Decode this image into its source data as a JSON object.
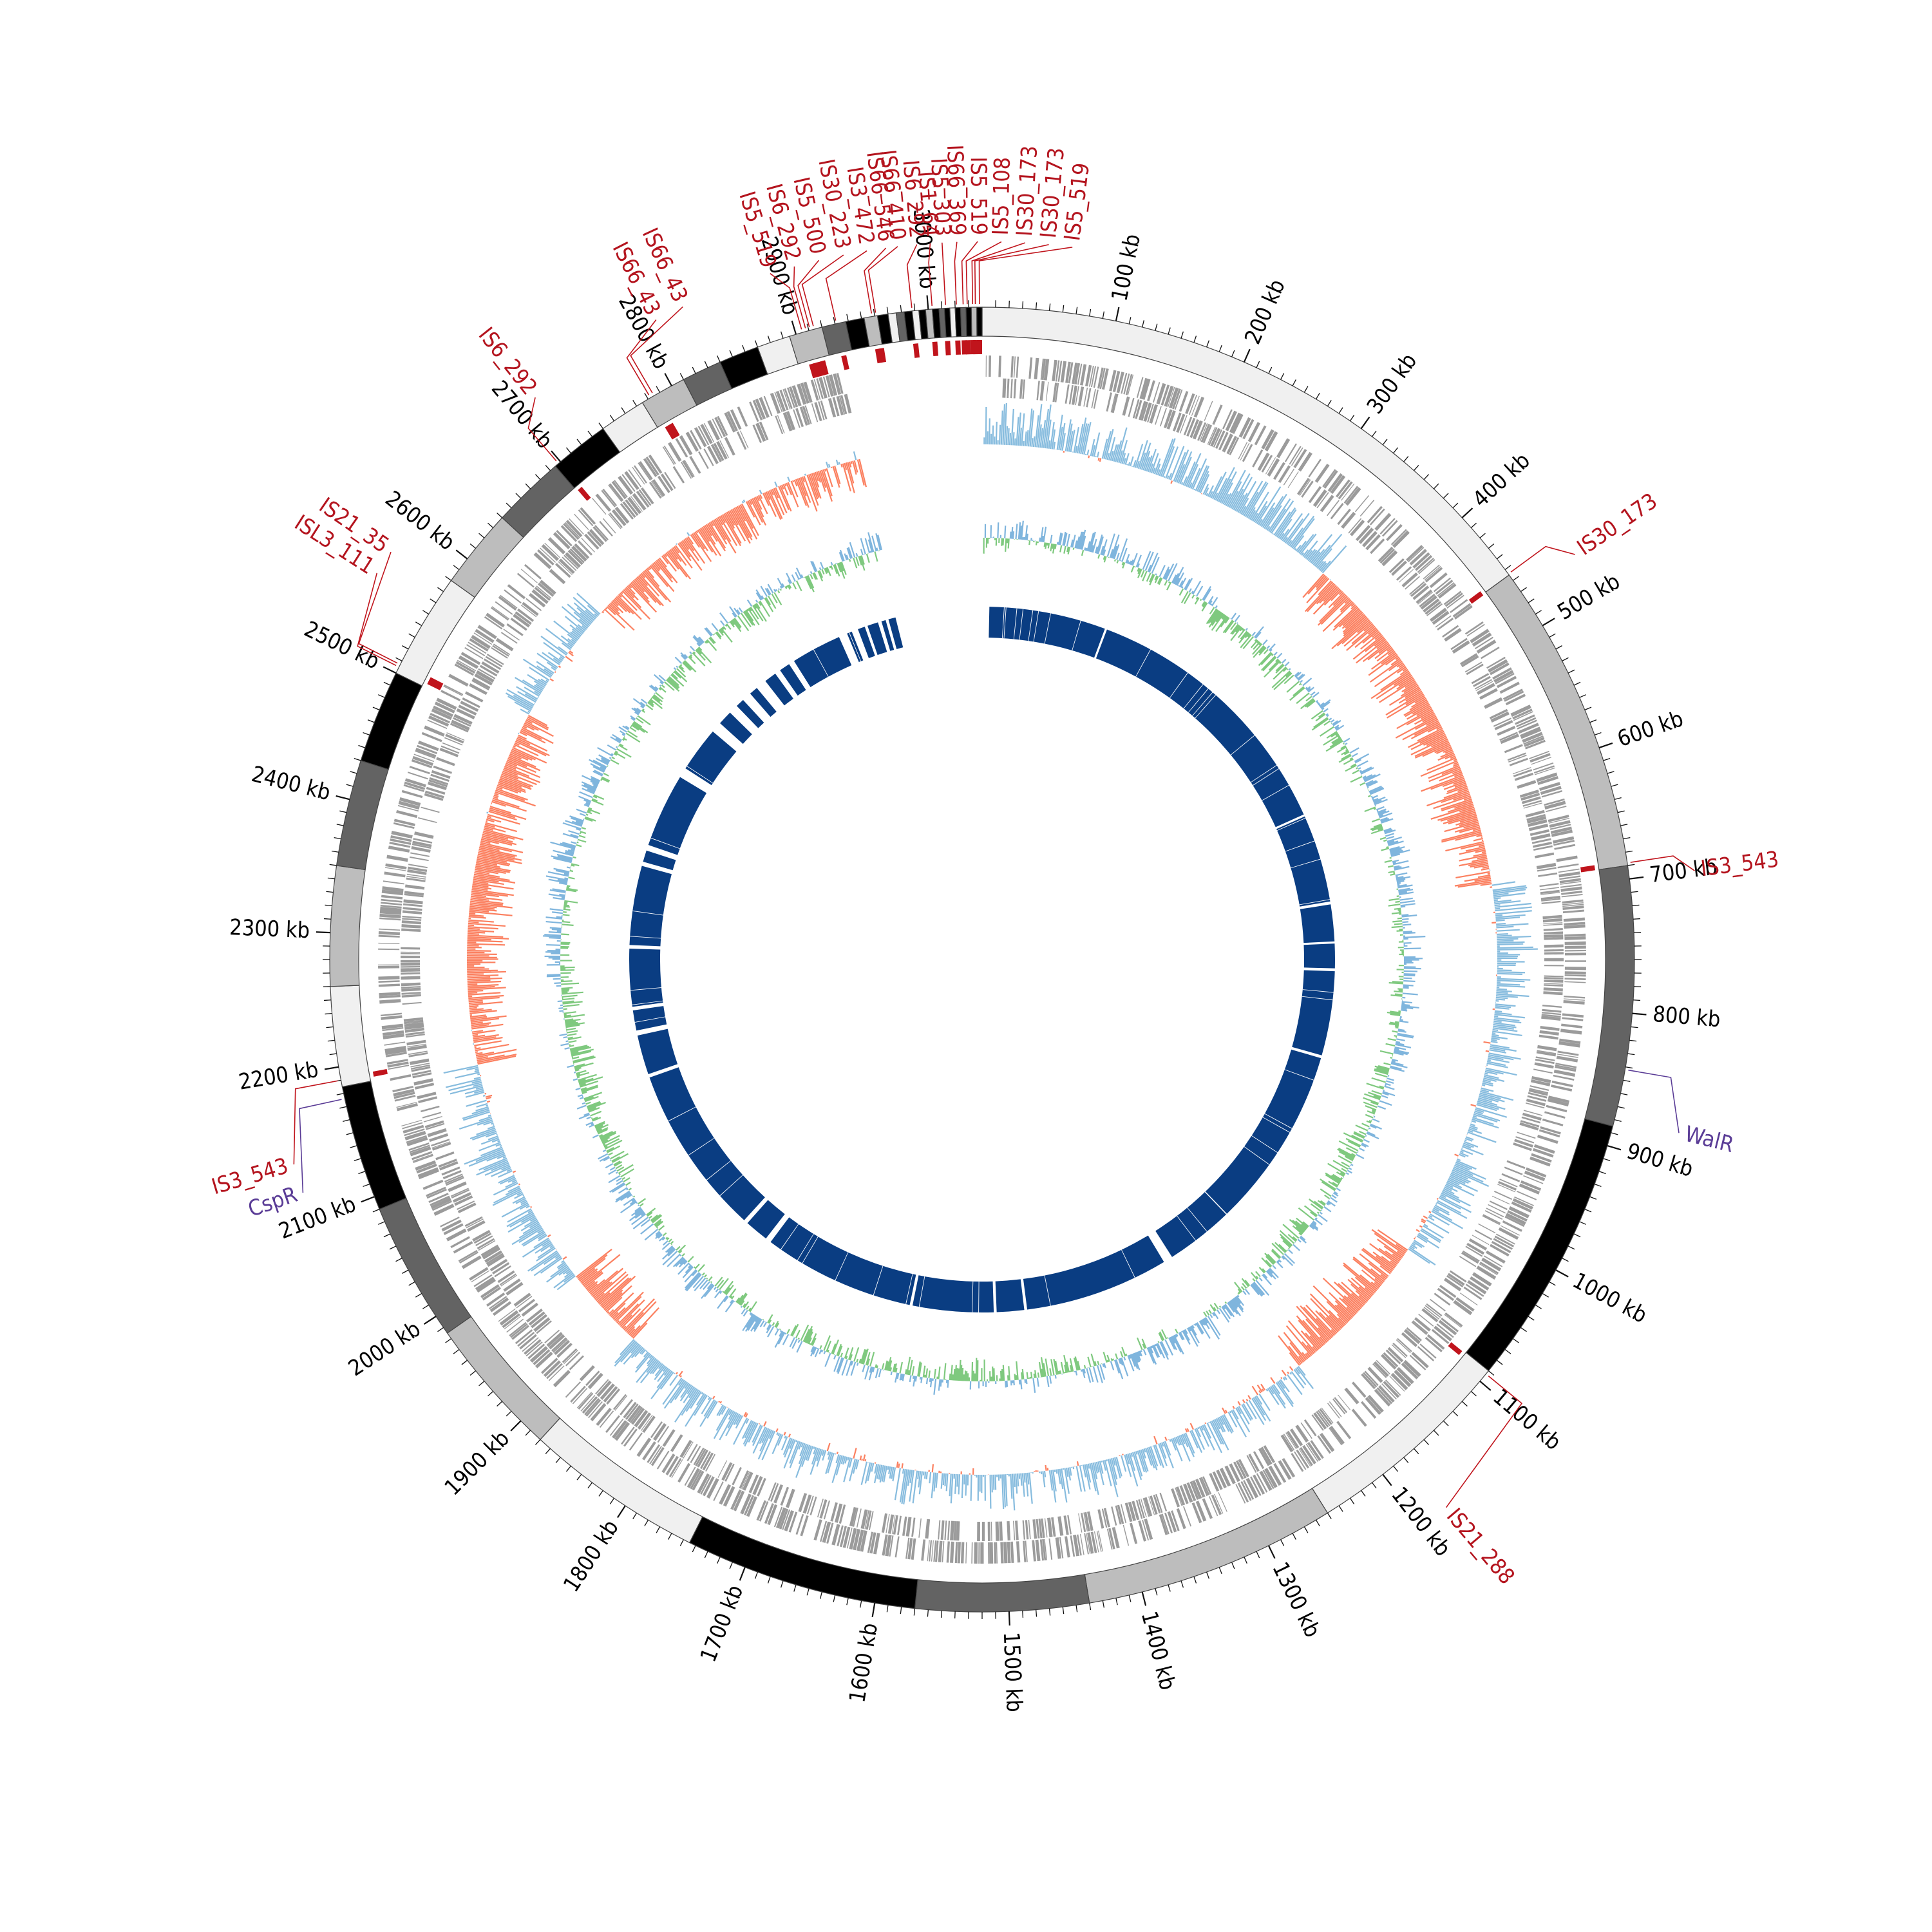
{
  "genome": {
    "length_kb": 3040,
    "tick_unit": "kb",
    "major_tick_kb": 100,
    "minor_tick_kb": 10,
    "tick_labels": [
      "100 kb",
      "200 kb",
      "300 kb",
      "400 kb",
      "500 kb",
      "600 kb",
      "700 kb",
      "800 kb",
      "900 kb",
      "1000 kb",
      "1100 kb",
      "1200 kb",
      "1300 kb",
      "1400 kb",
      "1500 kb",
      "1600 kb",
      "1700 kb",
      "1800 kb",
      "1900 kb",
      "2000 kb",
      "2100 kb",
      "2200 kb",
      "2300 kb",
      "2400 kb",
      "2500 kb",
      "2600 kb",
      "2700 kb",
      "2800 kb",
      "2900 kb",
      "3000 kb"
    ]
  },
  "contig_ring": {
    "colors": [
      "#f0f0f0",
      "#bdbdbd",
      "#636363",
      "#000000"
    ],
    "segments": [
      {
        "start": 0,
        "end": 455,
        "shade": 0
      },
      {
        "start": 455,
        "end": 690,
        "shade": 1
      },
      {
        "start": 690,
        "end": 885,
        "shade": 2
      },
      {
        "start": 885,
        "end": 1090,
        "shade": 3
      },
      {
        "start": 1090,
        "end": 1250,
        "shade": 0
      },
      {
        "start": 1250,
        "end": 1440,
        "shade": 1
      },
      {
        "start": 1440,
        "end": 1570,
        "shade": 2
      },
      {
        "start": 1570,
        "end": 1745,
        "shade": 3
      },
      {
        "start": 1745,
        "end": 1880,
        "shade": 0
      },
      {
        "start": 1880,
        "end": 1985,
        "shade": 1
      },
      {
        "start": 1985,
        "end": 2090,
        "shade": 2
      },
      {
        "start": 2090,
        "end": 2185,
        "shade": 3
      },
      {
        "start": 2185,
        "end": 2260,
        "shade": 0
      },
      {
        "start": 2260,
        "end": 2350,
        "shade": 1
      },
      {
        "start": 2350,
        "end": 2430,
        "shade": 2
      },
      {
        "start": 2430,
        "end": 2500,
        "shade": 3
      },
      {
        "start": 2500,
        "end": 2580,
        "shade": 0
      },
      {
        "start": 2580,
        "end": 2640,
        "shade": 1
      },
      {
        "start": 2640,
        "end": 2695,
        "shade": 2
      },
      {
        "start": 2695,
        "end": 2740,
        "shade": 3
      },
      {
        "start": 2740,
        "end": 2775,
        "shade": 0
      },
      {
        "start": 2775,
        "end": 2810,
        "shade": 1
      },
      {
        "start": 2810,
        "end": 2840,
        "shade": 2
      },
      {
        "start": 2840,
        "end": 2870,
        "shade": 3
      },
      {
        "start": 2870,
        "end": 2895,
        "shade": 0
      },
      {
        "start": 2895,
        "end": 2920,
        "shade": 1
      },
      {
        "start": 2920,
        "end": 2938,
        "shade": 2
      },
      {
        "start": 2938,
        "end": 2952,
        "shade": 3
      },
      {
        "start": 2952,
        "end": 2962,
        "shade": 1
      },
      {
        "start": 2962,
        "end": 2970,
        "shade": 3
      },
      {
        "start": 2970,
        "end": 2976,
        "shade": 0
      },
      {
        "start": 2976,
        "end": 2982,
        "shade": 2
      },
      {
        "start": 2982,
        "end": 2988,
        "shade": 3
      },
      {
        "start": 2988,
        "end": 2993,
        "shade": 0
      },
      {
        "start": 2993,
        "end": 2998,
        "shade": 3
      },
      {
        "start": 2998,
        "end": 3003,
        "shade": 1
      },
      {
        "start": 3003,
        "end": 3008,
        "shade": 3
      },
      {
        "start": 3008,
        "end": 3012,
        "shade": 2
      },
      {
        "start": 3012,
        "end": 3016,
        "shade": 3
      },
      {
        "start": 3016,
        "end": 3020,
        "shade": 0
      },
      {
        "start": 3020,
        "end": 3024,
        "shade": 3
      },
      {
        "start": 3024,
        "end": 3028,
        "shade": 2
      },
      {
        "start": 3028,
        "end": 3032,
        "shade": 3
      },
      {
        "start": 3032,
        "end": 3036,
        "shade": 1
      },
      {
        "start": 3036,
        "end": 3040,
        "shade": 3
      }
    ]
  },
  "is_elements": [
    {
      "label": "IS30_173",
      "pos": 454,
      "label_pos": 470
    },
    {
      "label": "IS3_543",
      "pos": 688,
      "label_pos": 700
    },
    {
      "label": "IS21_288",
      "pos": 1093,
      "label_pos": 1180
    },
    {
      "label": "IS3_543",
      "pos": 2190,
      "label_pos": 2140
    },
    {
      "label": "ISL3_111",
      "pos": 2505,
      "label_pos": 2555
    },
    {
      "label": "IS21_35",
      "pos": 2507,
      "label_pos": 2572
    },
    {
      "label": "IS6_292",
      "pos": 2698,
      "label_pos": 2715
    },
    {
      "label": "IS66_43",
      "pos": 2782,
      "label_pos": 2812
    },
    {
      "label": "IS66_43",
      "pos": 2785,
      "label_pos": 2832
    },
    {
      "label": "IS5_519",
      "pos": 2905,
      "label_pos": 2895
    },
    {
      "label": "IS6_292",
      "pos": 2908,
      "label_pos": 2912
    },
    {
      "label": "IS5_500",
      "pos": 2911,
      "label_pos": 2929
    },
    {
      "label": "IS30_223",
      "pos": 2914,
      "label_pos": 2946
    },
    {
      "label": "IS3_472",
      "pos": 2931,
      "label_pos": 2962
    },
    {
      "label": "IS66_546",
      "pos": 2958,
      "label_pos": 2975
    },
    {
      "label": "IS66_410",
      "pos": 2961,
      "label_pos": 2983
    },
    {
      "label": "IS6_292",
      "pos": 2988,
      "label_pos": 2996
    },
    {
      "label": "IS1_64",
      "pos": 3003,
      "label_pos": 3005
    },
    {
      "label": "IS5_303",
      "pos": 3013,
      "label_pos": 3013
    },
    {
      "label": "IS66_369",
      "pos": 3021,
      "label_pos": 3023
    },
    {
      "label": "IS5_519",
      "pos": 3026,
      "label_pos": 3037
    },
    {
      "label": "IS5_108",
      "pos": 3029,
      "label_pos": 13
    },
    {
      "label": "IS30_173",
      "pos": 3033,
      "label_pos": 29
    },
    {
      "label": "IS30_173",
      "pos": 3035,
      "label_pos": 45
    },
    {
      "label": "IS5_519",
      "pos": 3038,
      "label_pos": 61
    }
  ],
  "genes": [
    {
      "label": "WalR",
      "pos": 842,
      "label_pos": 878
    },
    {
      "label": "CspR",
      "pos": 2176,
      "label_pos": 2120
    }
  ],
  "gc_skew_colors": {
    "positive": "#87bcde",
    "negative": "#fb8060"
  },
  "gc_content_colors": {
    "high": "#7fc97f",
    "low": "#7fb5dd"
  },
  "block_ring": {
    "color": "#0a3d82",
    "blocks": [
      {
        "start": 10,
        "end": 172
      },
      {
        "start": 175,
        "end": 555
      },
      {
        "start": 558,
        "end": 680
      },
      {
        "start": 684,
        "end": 735
      },
      {
        "start": 738,
        "end": 772
      },
      {
        "start": 776,
        "end": 893
      },
      {
        "start": 897,
        "end": 1245
      },
      {
        "start": 1258,
        "end": 1458
      },
      {
        "start": 1462,
        "end": 1500
      },
      {
        "start": 1504,
        "end": 1616
      },
      {
        "start": 1620,
        "end": 1831
      },
      {
        "start": 1839,
        "end": 1872
      },
      {
        "start": 1878,
        "end": 2115
      },
      {
        "start": 2120,
        "end": 2175
      },
      {
        "start": 2182,
        "end": 2210
      },
      {
        "start": 2215,
        "end": 2295
      },
      {
        "start": 2300,
        "end": 2410
      },
      {
        "start": 2416,
        "end": 2432
      },
      {
        "start": 2440,
        "end": 2543
      },
      {
        "start": 2557,
        "end": 2620
      },
      {
        "start": 2635,
        "end": 2655
      },
      {
        "start": 2668,
        "end": 2680
      },
      {
        "start": 2693,
        "end": 2705
      },
      {
        "start": 2720,
        "end": 2737
      },
      {
        "start": 2745,
        "end": 2760
      },
      {
        "start": 2768,
        "end": 2838
      },
      {
        "start": 2850,
        "end": 2857
      },
      {
        "start": 2866,
        "end": 2876
      },
      {
        "start": 2880,
        "end": 2895
      },
      {
        "start": 2900,
        "end": 2906
      },
      {
        "start": 2910,
        "end": 2920
      }
    ]
  }
}
